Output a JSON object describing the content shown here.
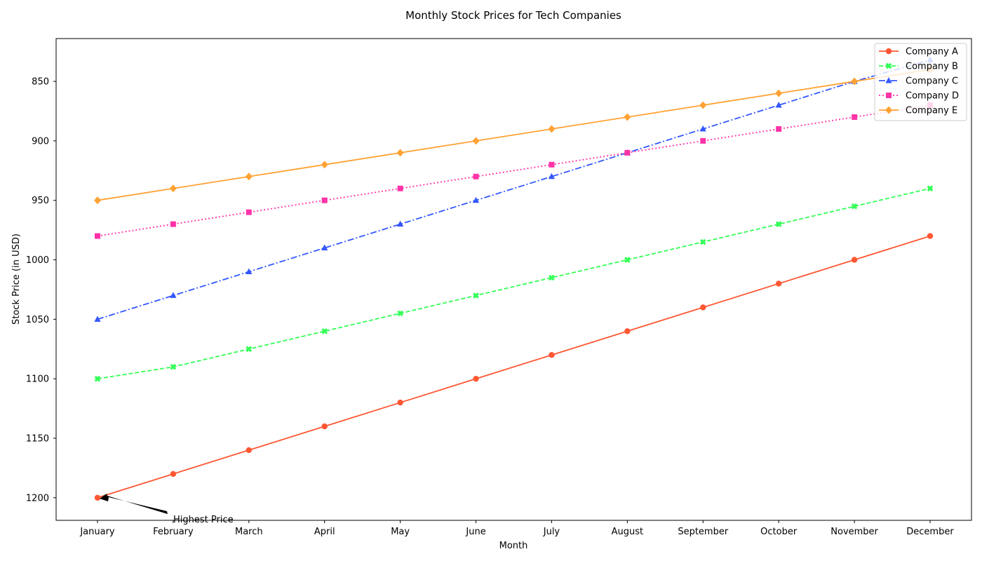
{
  "chart_data": {
    "type": "line",
    "title": "Monthly Stock Prices for Tech Companies",
    "xlabel": "Month",
    "ylabel": "Stock Price (in USD)",
    "y_axis_inverted": true,
    "ylim": [
      1219,
      814
    ],
    "y_ticks": [
      850,
      900,
      950,
      1000,
      1050,
      1100,
      1150,
      1200
    ],
    "grid": false,
    "legend_position": "top-right",
    "categories": [
      "January",
      "February",
      "March",
      "April",
      "May",
      "June",
      "July",
      "August",
      "September",
      "October",
      "November",
      "December"
    ],
    "series": [
      {
        "name": "Company A",
        "color": "#ff5733",
        "line_style": "solid",
        "marker": "circle",
        "values": [
          1200,
          1180,
          1160,
          1140,
          1120,
          1100,
          1080,
          1060,
          1040,
          1020,
          1000,
          980
        ]
      },
      {
        "name": "Company B",
        "color": "#33ff57",
        "line_style": "dashed",
        "marker": "x",
        "values": [
          1100,
          1090,
          1075,
          1060,
          1045,
          1030,
          1015,
          1000,
          985,
          970,
          955,
          940
        ]
      },
      {
        "name": "Company C",
        "color": "#3357ff",
        "line_style": "dashdot",
        "marker": "triangle",
        "values": [
          1050,
          1030,
          1010,
          990,
          970,
          950,
          930,
          910,
          890,
          870,
          850,
          832
        ]
      },
      {
        "name": "Company D",
        "color": "#ff33a8",
        "line_style": "dotted",
        "marker": "square",
        "values": [
          980,
          970,
          960,
          950,
          940,
          930,
          920,
          910,
          900,
          890,
          880,
          870
        ]
      },
      {
        "name": "Company E",
        "color": "#ffa233",
        "line_style": "solid",
        "marker": "diamond",
        "values": [
          950,
          940,
          930,
          920,
          910,
          900,
          890,
          880,
          870,
          860,
          850,
          840
        ]
      }
    ],
    "annotation": {
      "text": "Highest Price",
      "x": "January",
      "y": 1200
    }
  }
}
